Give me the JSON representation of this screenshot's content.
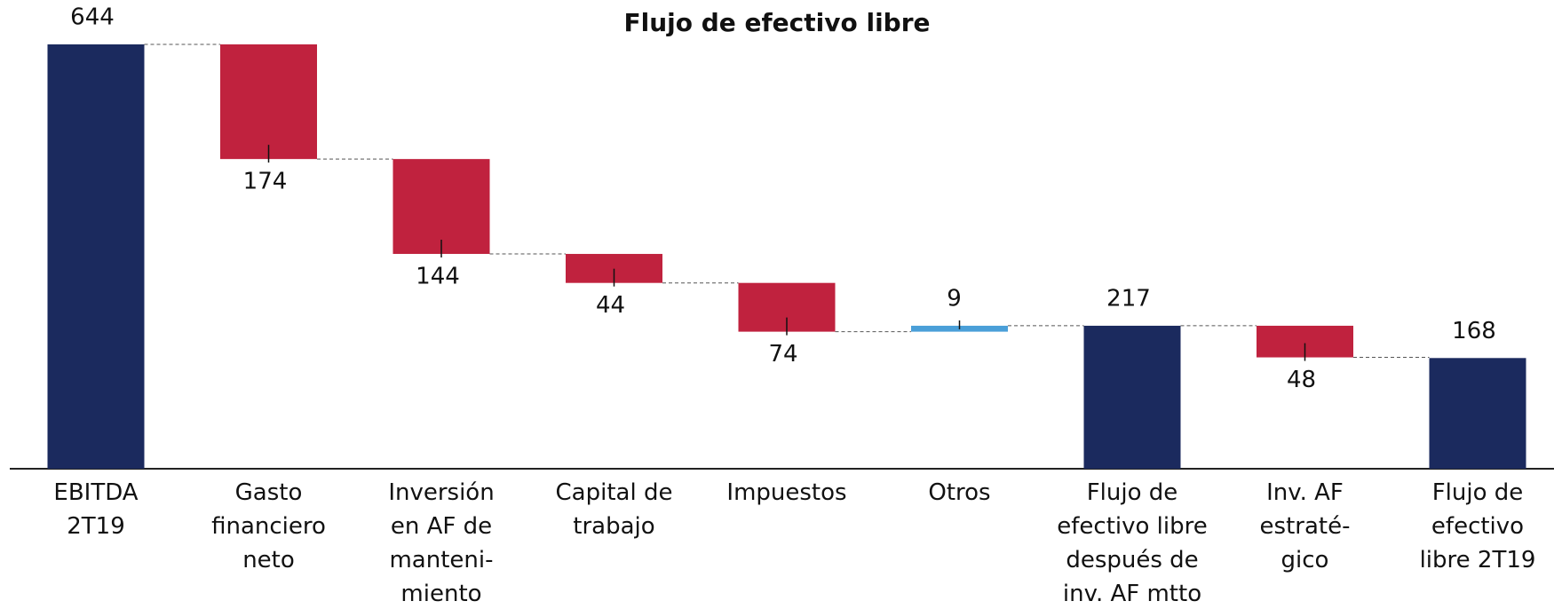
{
  "chart_data": {
    "type": "waterfall",
    "title": "Flujo de efectivo libre",
    "categories": [
      "EBITDA\n2T19",
      "Gasto\nfinanciero\nneto",
      "Inversión\nen AF de\nmanteni-\nmiento",
      "Capital de\ntrabajo",
      "Impuestos",
      "Otros",
      "Flujo de\nefectivo libre\ndespués de\ninv. AF mtto",
      "Inv. AF\nestraté-\ngico",
      "Flujo de\nefectivo\nlibre 2T19"
    ],
    "measure": [
      "absolute",
      "relative",
      "relative",
      "relative",
      "relative",
      "relative",
      "absolute",
      "relative",
      "absolute"
    ],
    "values": [
      644,
      -174,
      -144,
      -44,
      -74,
      9,
      217,
      -48,
      168
    ],
    "value_labels": [
      "644",
      "174",
      "144",
      "44",
      "74",
      "9",
      "217",
      "48",
      "168"
    ],
    "colors": [
      "#1b2a5e",
      "#c0223e",
      "#c0223e",
      "#c0223e",
      "#c0223e",
      "#4a9fd8",
      "#1b2a5e",
      "#c0223e",
      "#1b2a5e"
    ]
  }
}
